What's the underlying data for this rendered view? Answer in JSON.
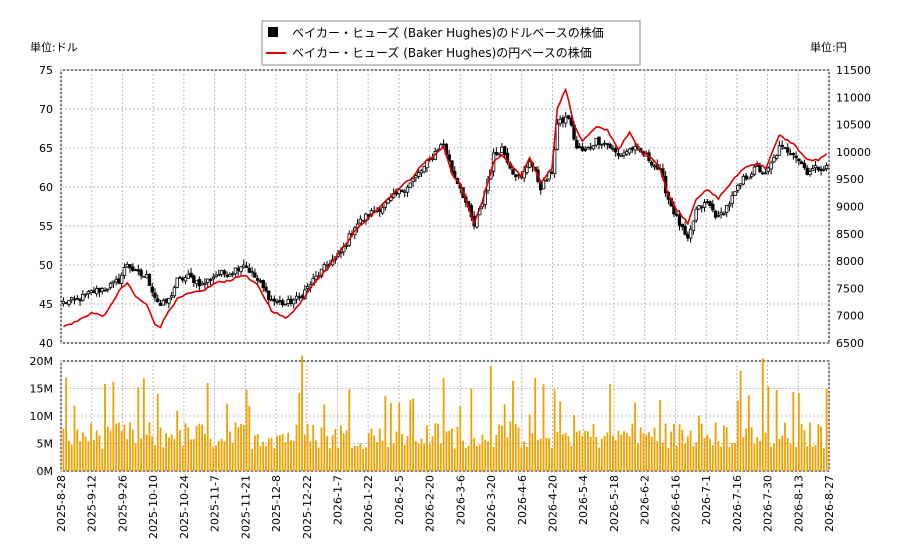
{
  "chart_data": {
    "type": "line",
    "legend": [
      {
        "label": "ベイカー・ヒューズ (Baker Hughes)のドルベースの株価",
        "marker": "square",
        "color": "#000000"
      },
      {
        "label": "ベイカー・ヒューズ (Baker Hughes)の円ベースの株価",
        "marker": "line",
        "color": "#dd0000"
      }
    ],
    "left_unit": "単位:ドル",
    "right_unit": "単位:円",
    "price_axis": {
      "min": 40,
      "max": 75,
      "ticks": [
        "40",
        "45",
        "50",
        "55",
        "60",
        "65",
        "70",
        "75"
      ]
    },
    "yen_axis": {
      "min": 6500,
      "max": 11500,
      "ticks": [
        "6500",
        "7000",
        "7500",
        "8000",
        "8500",
        "9000",
        "9500",
        "10000",
        "10500",
        "11000",
        "11500"
      ]
    },
    "volume_axis": {
      "min": 0,
      "max": 20000000,
      "ticks": [
        "0M",
        "5M",
        "10M",
        "15M",
        "20M"
      ]
    },
    "x_labels": [
      "2025-8-28",
      "2025-9-12",
      "2025-9-26",
      "2025-10-10",
      "2025-10-24",
      "2025-11-7",
      "2025-11-21",
      "2025-12-8",
      "2025-12-22",
      "2026-1-7",
      "2026-1-22",
      "2026-2-5",
      "2026-2-20",
      "2026-3-6",
      "2026-3-20",
      "2026-4-6",
      "2026-4-20",
      "2026-5-4",
      "2026-5-18",
      "2026-6-2",
      "2026-6-16",
      "2026-7-1",
      "2026-7-16",
      "2026-7-30",
      "2026-8-13",
      "2026-8-27"
    ],
    "usd_anchors": [
      [
        0,
        45.2
      ],
      [
        5,
        45.5
      ],
      [
        10,
        46.5
      ],
      [
        15,
        47.0
      ],
      [
        20,
        48.0
      ],
      [
        23,
        50.2
      ],
      [
        26,
        49.0
      ],
      [
        30,
        48.5
      ],
      [
        33,
        46.0
      ],
      [
        35,
        44.8
      ],
      [
        38,
        45.5
      ],
      [
        41,
        48.0
      ],
      [
        45,
        48.5
      ],
      [
        50,
        47.5
      ],
      [
        55,
        48.8
      ],
      [
        60,
        49.0
      ],
      [
        65,
        50.2
      ],
      [
        70,
        48.0
      ],
      [
        75,
        45.5
      ],
      [
        80,
        45.0
      ],
      [
        85,
        45.8
      ],
      [
        90,
        48.0
      ],
      [
        95,
        50.0
      ],
      [
        100,
        51.5
      ],
      [
        105,
        55.0
      ],
      [
        110,
        56.5
      ],
      [
        115,
        57.5
      ],
      [
        120,
        59.0
      ],
      [
        125,
        60.5
      ],
      [
        130,
        62.5
      ],
      [
        135,
        65.0
      ],
      [
        137,
        65.5
      ],
      [
        140,
        62.0
      ],
      [
        143,
        60.0
      ],
      [
        148,
        55.0
      ],
      [
        151,
        58.0
      ],
      [
        155,
        64.0
      ],
      [
        158,
        65.0
      ],
      [
        162,
        62.0
      ],
      [
        165,
        61.0
      ],
      [
        168,
        63.5
      ],
      [
        172,
        60.0
      ],
      [
        176,
        62.0
      ],
      [
        178,
        68.0
      ],
      [
        182,
        69.0
      ],
      [
        185,
        65.0
      ],
      [
        188,
        64.5
      ],
      [
        192,
        66.0
      ],
      [
        196,
        65.5
      ],
      [
        200,
        64.0
      ],
      [
        205,
        65.0
      ],
      [
        210,
        64.0
      ],
      [
        215,
        62.0
      ],
      [
        218,
        58.5
      ],
      [
        221,
        56.0
      ],
      [
        225,
        53.0
      ],
      [
        228,
        57.0
      ],
      [
        232,
        58.0
      ],
      [
        236,
        56.0
      ],
      [
        240,
        58.0
      ],
      [
        245,
        61.0
      ],
      [
        250,
        62.5
      ],
      [
        253,
        61.5
      ],
      [
        258,
        65.0
      ],
      [
        263,
        64.5
      ],
      [
        268,
        62.0
      ],
      [
        272,
        62.5
      ],
      [
        275,
        62.5
      ]
    ],
    "jpy_anchors": [
      [
        0,
        6800
      ],
      [
        5,
        6900
      ],
      [
        10,
        7050
      ],
      [
        15,
        7000
      ],
      [
        20,
        7450
      ],
      [
        23,
        7600
      ],
      [
        26,
        7350
      ],
      [
        30,
        7200
      ],
      [
        33,
        6850
      ],
      [
        35,
        6800
      ],
      [
        38,
        7100
      ],
      [
        41,
        7300
      ],
      [
        45,
        7400
      ],
      [
        50,
        7450
      ],
      [
        55,
        7600
      ],
      [
        60,
        7650
      ],
      [
        65,
        7750
      ],
      [
        70,
        7550
      ],
      [
        75,
        7100
      ],
      [
        80,
        6950
      ],
      [
        85,
        7200
      ],
      [
        90,
        7600
      ],
      [
        95,
        7850
      ],
      [
        100,
        8200
      ],
      [
        105,
        8550
      ],
      [
        110,
        8800
      ],
      [
        115,
        9050
      ],
      [
        120,
        9300
      ],
      [
        125,
        9500
      ],
      [
        130,
        9800
      ],
      [
        135,
        10000
      ],
      [
        137,
        10100
      ],
      [
        140,
        9600
      ],
      [
        143,
        9400
      ],
      [
        148,
        8700
      ],
      [
        151,
        9100
      ],
      [
        155,
        9800
      ],
      [
        158,
        9950
      ],
      [
        162,
        9700
      ],
      [
        165,
        9550
      ],
      [
        168,
        9900
      ],
      [
        172,
        9450
      ],
      [
        176,
        9700
      ],
      [
        178,
        10800
      ],
      [
        181,
        11150
      ],
      [
        184,
        10500
      ],
      [
        187,
        10200
      ],
      [
        192,
        10450
      ],
      [
        196,
        10400
      ],
      [
        200,
        10050
      ],
      [
        204,
        10350
      ],
      [
        208,
        10000
      ],
      [
        212,
        9900
      ],
      [
        215,
        9700
      ],
      [
        218,
        9200
      ],
      [
        221,
        8950
      ],
      [
        225,
        8700
      ],
      [
        228,
        9150
      ],
      [
        232,
        9300
      ],
      [
        236,
        9150
      ],
      [
        240,
        9400
      ],
      [
        245,
        9700
      ],
      [
        250,
        9800
      ],
      [
        253,
        9700
      ],
      [
        258,
        10300
      ],
      [
        263,
        10150
      ],
      [
        268,
        9850
      ],
      [
        272,
        9850
      ],
      [
        275,
        9950
      ]
    ],
    "volume_range_millions": [
      2,
      21
    ]
  }
}
